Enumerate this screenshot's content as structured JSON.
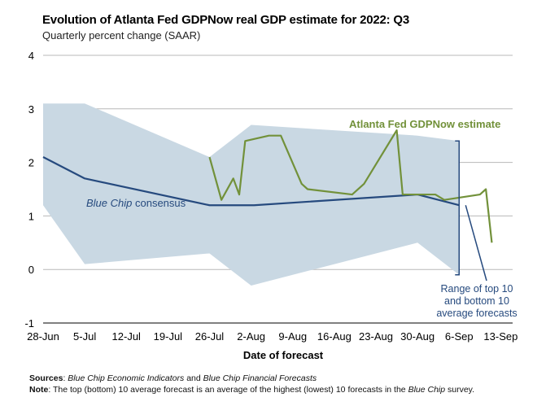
{
  "chart_data": {
    "type": "line",
    "title": "Evolution of Atlanta Fed GDPNow real GDP estimate for 2022: Q3",
    "subtitle": "Quarterly percent change (SAAR)",
    "xlabel": "Date of forecast",
    "ylabel": "Quarterly percent change (SAAR)",
    "ylim": [
      -1,
      4
    ],
    "xlim": [
      0,
      79
    ],
    "y_ticks": [
      4,
      3,
      2,
      1,
      0,
      -1
    ],
    "x_ticks": [
      {
        "label": "28-Jun",
        "x": 0
      },
      {
        "label": "5-Jul",
        "x": 7
      },
      {
        "label": "12-Jul",
        "x": 14
      },
      {
        "label": "19-Jul",
        "x": 21
      },
      {
        "label": "26-Jul",
        "x": 28
      },
      {
        "label": "2-Aug",
        "x": 35
      },
      {
        "label": "9-Aug",
        "x": 42
      },
      {
        "label": "16-Aug",
        "x": 49
      },
      {
        "label": "23-Aug",
        "x": 56
      },
      {
        "label": "30-Aug",
        "x": 63
      },
      {
        "label": "6-Sep",
        "x": 70
      },
      {
        "label": "13-Sep",
        "x": 77
      }
    ],
    "grid": true,
    "x_is_day_offset_from": "28-Jun",
    "series": [
      {
        "name": "Blue Chip consensus",
        "label": "Blue Chip consensus",
        "color": "#264a7e",
        "points": [
          [
            0,
            2.1
          ],
          [
            7,
            1.7
          ],
          [
            28,
            1.2
          ],
          [
            35,
            1.2
          ],
          [
            35.5,
            1.2
          ],
          [
            63,
            1.4
          ],
          [
            70,
            1.2
          ]
        ]
      },
      {
        "name": "Atlanta Fed GDPNow estimate",
        "label": "Atlanta Fed GDPNow estimate",
        "color": "#72913a",
        "points": [
          [
            28,
            2.1
          ],
          [
            30,
            1.3
          ],
          [
            32,
            1.7
          ],
          [
            33,
            1.4
          ],
          [
            34,
            2.4
          ],
          [
            38,
            2.5
          ],
          [
            40,
            2.5
          ],
          [
            43.5,
            1.6
          ],
          [
            44.5,
            1.5
          ],
          [
            52,
            1.4
          ],
          [
            54,
            1.6
          ],
          [
            59.5,
            2.6
          ],
          [
            60.5,
            1.4
          ],
          [
            66,
            1.4
          ],
          [
            67.5,
            1.3
          ],
          [
            73.5,
            1.4
          ],
          [
            74.5,
            1.5
          ],
          [
            75.5,
            0.5
          ]
        ]
      }
    ],
    "range_band": {
      "name": "Range of top 10 and bottom 10 average forecasts",
      "color": "#c9d8e3",
      "x": [
        0,
        7,
        28,
        35,
        63,
        70
      ],
      "upper": [
        3.1,
        3.1,
        2.1,
        2.7,
        2.5,
        2.4
      ],
      "lower": [
        1.2,
        0.1,
        0.3,
        -0.3,
        0.5,
        -0.1
      ]
    },
    "annotations": [
      {
        "id": "range",
        "lines": [
          "Range of top 10",
          "and bottom 10",
          "average forecasts"
        ]
      }
    ]
  },
  "footer": {
    "sources_label": "Sources",
    "sources_text_1": "Blue Chip Economic Indicators",
    "sources_and": " and ",
    "sources_text_2": "Blue Chip Financial Forecasts",
    "note_label": "Note",
    "note_text_1": ": The top (bottom) 10 average forecast is an average of the highest (lowest) 10 forecasts in the ",
    "note_text_2": "Blue Chip",
    "note_text_3": " survey."
  }
}
